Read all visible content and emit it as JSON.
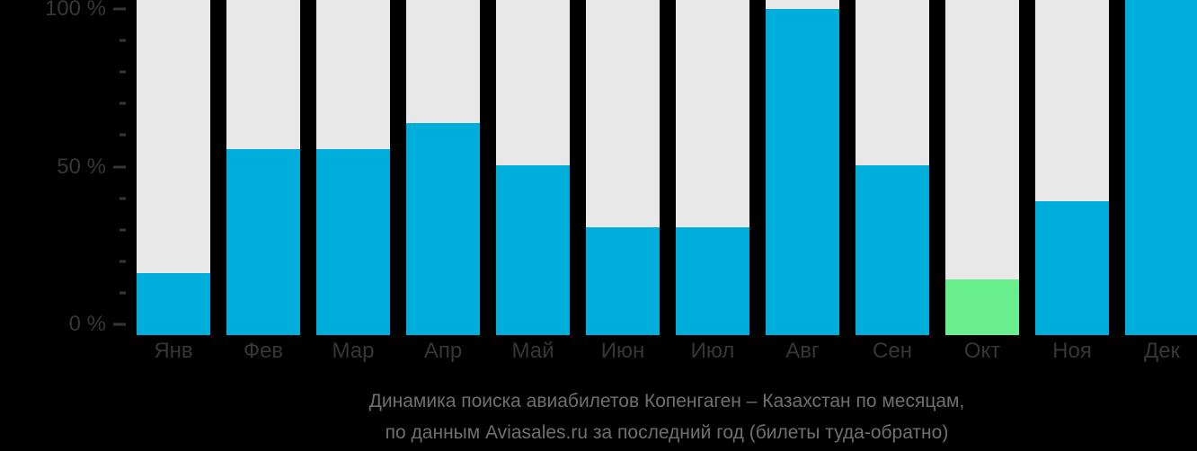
{
  "chart_data": {
    "type": "bar",
    "title_lines": [
      "Динамика поиска авиабилетов Копенгаген – Казахстан по месяцам,",
      "по данным Aviasales.ru за последний год (билеты туда-обратно)"
    ],
    "categories": [
      "Янв",
      "Фев",
      "Мар",
      "Апр",
      "Май",
      "Июн",
      "Июл",
      "Авг",
      "Сен",
      "Окт",
      "Ноя",
      "Дек"
    ],
    "values": [
      19,
      57,
      57,
      65,
      52,
      33,
      33,
      100,
      52,
      17,
      41,
      100
    ],
    "unit": "%",
    "ylim": [
      0,
      100
    ],
    "y_major_tick_values": [
      0,
      50,
      100
    ],
    "y_major_tick_labels": [
      "0 %",
      "50 %",
      "100 %"
    ],
    "y_minor_tick_step": 10,
    "grid": false,
    "legend": "none",
    "min_month": {
      "index": 9,
      "label": "Окт",
      "value": 17
    },
    "max_month": {
      "index": 11,
      "label": "Дек",
      "value": 100
    },
    "bar_top_clipped_index": 11,
    "note": "Each month has a full-height light track to 100%; October (minimum) bar is green; December bar reaches the top edge of the image.",
    "colors": {
      "background": "#000000",
      "bar_default": "#00AEDC",
      "bar_min_month": "#68EE8D",
      "bar_track": "#E8E8E8",
      "axis_text": "#363636",
      "title_text": "#6F6F6F"
    }
  }
}
